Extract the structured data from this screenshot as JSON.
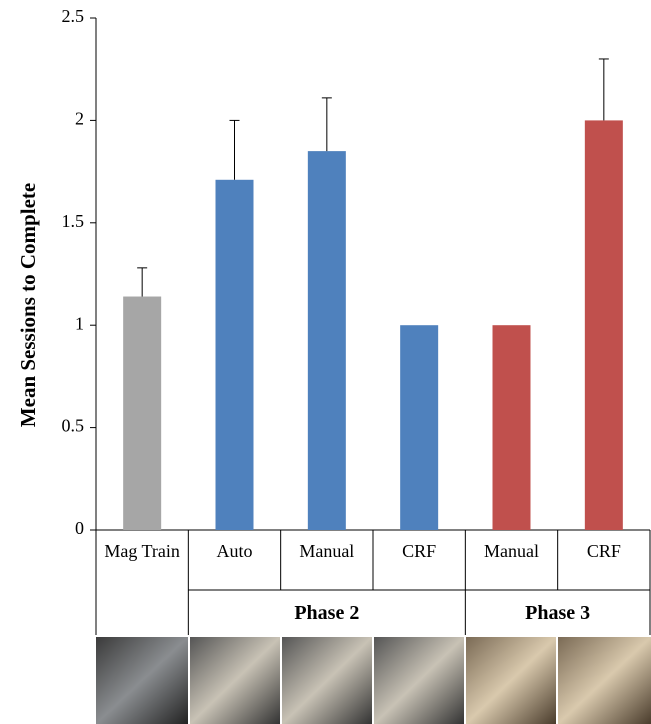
{
  "chart_data": {
    "type": "bar",
    "y_label": "Mean Sessions to Complete",
    "categories": [
      "Mag Train",
      "Auto",
      "Manual",
      "CRF",
      "Manual",
      "CRF"
    ],
    "groups": [
      null,
      "Phase 2",
      "Phase 2",
      "Phase 2",
      "Phase 3",
      "Phase 3"
    ],
    "values": [
      1.14,
      1.71,
      1.85,
      1.0,
      1.0,
      2.0
    ],
    "errors": [
      0.14,
      0.29,
      0.26,
      0.0,
      0.0,
      0.3
    ],
    "colors": [
      "#a6a6a6",
      "#4f81bd",
      "#4f81bd",
      "#4f81bd",
      "#c0504d",
      "#c0504d"
    ],
    "ylim": [
      0,
      2.5
    ],
    "yticks": [
      0,
      0.5,
      1,
      1.5,
      2,
      2.5
    ],
    "grid": false
  }
}
